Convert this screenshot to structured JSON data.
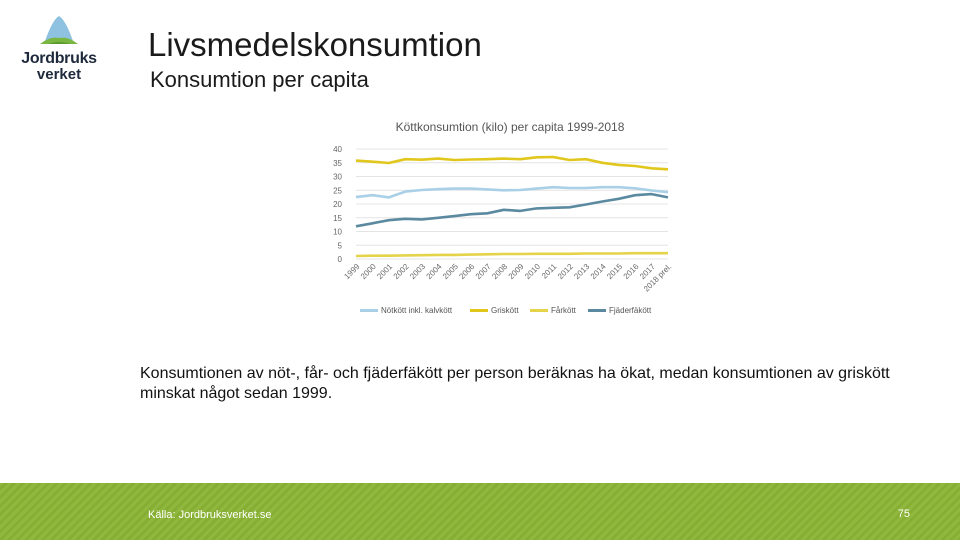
{
  "logo": {
    "line1": "Jordbruks",
    "line2": "verket"
  },
  "header": {
    "title": "Livsmedelskonsumtion",
    "subtitle": "Konsumtion per capita"
  },
  "chart_data": {
    "type": "line",
    "title": "Köttkonsumtion (kilo) per capita 1999-2018",
    "categories": [
      "1999",
      "2000",
      "2001",
      "2002",
      "2003",
      "2004",
      "2005",
      "2006",
      "2007",
      "2008",
      "2009",
      "2010",
      "2011",
      "2012",
      "2013",
      "2014",
      "2015",
      "2016",
      "2017",
      "2018 prel."
    ],
    "yticks": [
      0,
      5,
      10,
      15,
      20,
      25,
      30,
      35,
      40
    ],
    "ylim": [
      0,
      40
    ],
    "grid": true,
    "legend_position": "bottom",
    "series": [
      {
        "name": "Nötkött inkl. kalvkött",
        "color": "#a9d0e6",
        "values": [
          22.5,
          23.2,
          22.4,
          24.5,
          25.1,
          25.4,
          25.6,
          25.6,
          25.3,
          25.0,
          25.1,
          25.6,
          26.1,
          25.8,
          25.8,
          26.1,
          26.1,
          25.7,
          24.9,
          24.3
        ]
      },
      {
        "name": "Griskött",
        "color": "#e1c71c",
        "values": [
          35.8,
          35.4,
          34.9,
          36.3,
          36.1,
          36.5,
          36.0,
          36.2,
          36.3,
          36.5,
          36.3,
          37.0,
          37.1,
          36.0,
          36.3,
          35.0,
          34.2,
          33.8,
          33.0,
          32.6
        ]
      },
      {
        "name": "Fårkött",
        "color": "#e5d34a",
        "values": [
          1.1,
          1.2,
          1.2,
          1.3,
          1.4,
          1.5,
          1.5,
          1.6,
          1.7,
          1.8,
          1.8,
          1.9,
          1.9,
          1.9,
          2.0,
          2.0,
          2.0,
          2.1,
          2.1,
          2.1
        ]
      },
      {
        "name": "Fjäderfäkött",
        "color": "#5b8aa0",
        "values": [
          11.9,
          13.0,
          14.1,
          14.6,
          14.4,
          15.0,
          15.6,
          16.3,
          16.6,
          17.9,
          17.5,
          18.4,
          18.6,
          18.8,
          19.8,
          20.9,
          21.9,
          23.2,
          23.6,
          22.4
        ]
      }
    ]
  },
  "body": {
    "text": "Konsumtionen av nöt-, får- och fjäderfäkött per person beräknas ha ökat, medan konsumtionen av griskött minskat något sedan 1999."
  },
  "footer": {
    "source": "Källa: Jordbruksverket.se",
    "page": "75"
  }
}
